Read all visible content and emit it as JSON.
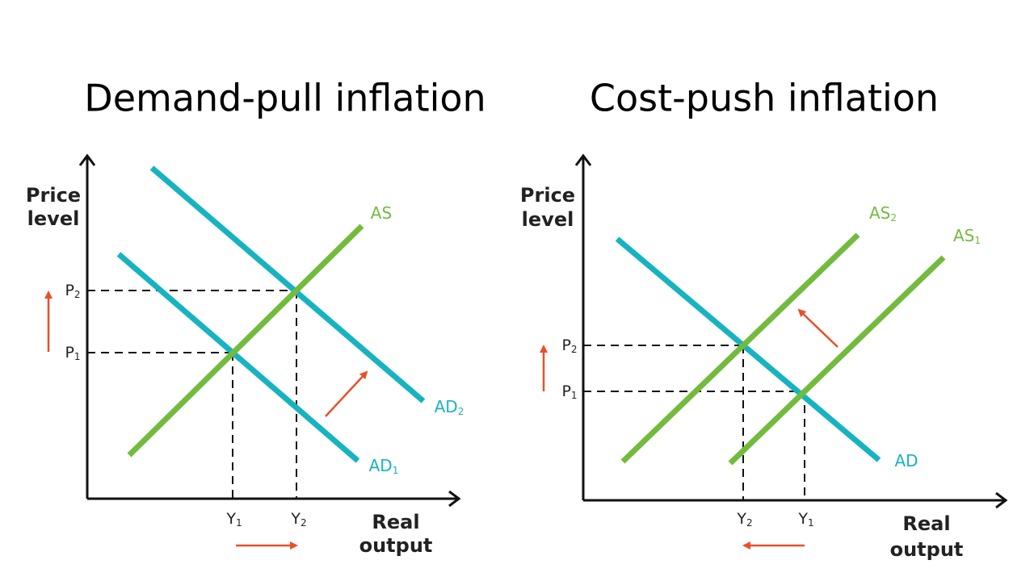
{
  "diagrams": [
    {
      "title": "Demand-pull inflation",
      "y_axis_label": [
        "Price",
        "level"
      ],
      "x_axis_label": [
        "Real",
        "output"
      ],
      "curves": [
        {
          "name": "AS"
        },
        {
          "name": "AD",
          "sub": "1"
        },
        {
          "name": "AD",
          "sub": "2"
        }
      ],
      "price_labels": [
        {
          "name": "P",
          "sub": "1"
        },
        {
          "name": "P",
          "sub": "2"
        }
      ],
      "output_labels": [
        {
          "name": "Y",
          "sub": "1"
        },
        {
          "name": "Y",
          "sub": "2"
        }
      ]
    },
    {
      "title": "Cost-push inflation",
      "y_axis_label": [
        "Price",
        "level"
      ],
      "x_axis_label": [
        "Real",
        "output"
      ],
      "curves": [
        {
          "name": "AS",
          "sub": "2"
        },
        {
          "name": "AS",
          "sub": "1"
        },
        {
          "name": "AD"
        }
      ],
      "price_labels": [
        {
          "name": "P",
          "sub": "2"
        },
        {
          "name": "P",
          "sub": "1"
        }
      ],
      "output_labels": [
        {
          "name": "Y",
          "sub": "2"
        },
        {
          "name": "Y",
          "sub": "1"
        }
      ]
    }
  ]
}
